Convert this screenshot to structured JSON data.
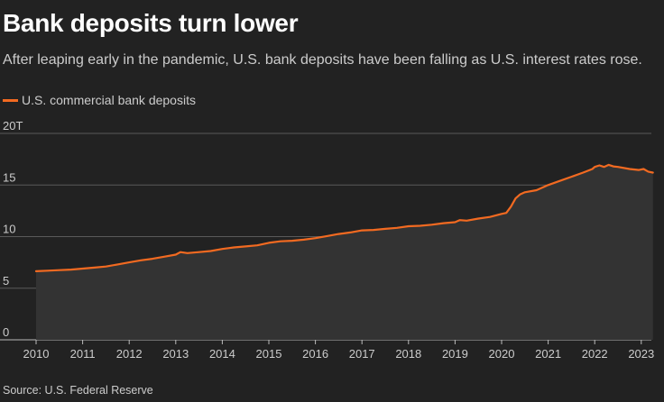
{
  "header": {
    "title": "Bank deposits turn lower",
    "subtitle": "After leaping early in the pandemic, U.S. bank deposits have been falling as U.S. interest rates rose."
  },
  "footer": {
    "source": "Source: U.S. Federal Reserve"
  },
  "colors": {
    "background": "#222222",
    "line": "#f26a21",
    "area": "#333333",
    "grid": "#5a5a5a",
    "text": "#cccccc"
  },
  "chart_data": {
    "type": "area",
    "title": "Bank deposits turn lower",
    "subtitle": "After leaping early in the pandemic, U.S. bank deposits have been falling as U.S. interest rates rose.",
    "xlabel": "",
    "ylabel": "",
    "xlim": [
      2010.0,
      2023.3
    ],
    "ylim": [
      0,
      20
    ],
    "yticks": [
      0,
      5,
      10,
      15,
      20
    ],
    "ytick_labels": [
      "0",
      "5",
      "10",
      "15",
      "20T"
    ],
    "xticks": [
      2010,
      2011,
      2012,
      2013,
      2014,
      2015,
      2016,
      2017,
      2018,
      2019,
      2020,
      2021,
      2022,
      2023
    ],
    "xtick_labels": [
      "2010",
      "2011",
      "2012",
      "2013",
      "2014",
      "2015",
      "2016",
      "2017",
      "2018",
      "2019",
      "2020",
      "2021",
      "2022",
      "2023"
    ],
    "grid": "horizontal",
    "legend_position": "top-left",
    "series": [
      {
        "name": "U.S. commercial bank deposits",
        "color": "#f26a21",
        "points": [
          [
            2010.0,
            6.65
          ],
          [
            2010.25,
            6.7
          ],
          [
            2010.5,
            6.75
          ],
          [
            2010.75,
            6.8
          ],
          [
            2011.0,
            6.9
          ],
          [
            2011.25,
            7.0
          ],
          [
            2011.5,
            7.1
          ],
          [
            2011.75,
            7.3
          ],
          [
            2012.0,
            7.5
          ],
          [
            2012.25,
            7.7
          ],
          [
            2012.5,
            7.85
          ],
          [
            2012.75,
            8.05
          ],
          [
            2013.0,
            8.25
          ],
          [
            2013.1,
            8.5
          ],
          [
            2013.25,
            8.4
          ],
          [
            2013.5,
            8.5
          ],
          [
            2013.75,
            8.6
          ],
          [
            2014.0,
            8.8
          ],
          [
            2014.25,
            8.95
          ],
          [
            2014.5,
            9.05
          ],
          [
            2014.75,
            9.15
          ],
          [
            2015.0,
            9.4
          ],
          [
            2015.25,
            9.55
          ],
          [
            2015.5,
            9.6
          ],
          [
            2015.75,
            9.7
          ],
          [
            2016.0,
            9.85
          ],
          [
            2016.25,
            10.05
          ],
          [
            2016.5,
            10.25
          ],
          [
            2016.75,
            10.4
          ],
          [
            2017.0,
            10.6
          ],
          [
            2017.25,
            10.65
          ],
          [
            2017.5,
            10.75
          ],
          [
            2017.75,
            10.85
          ],
          [
            2018.0,
            11.0
          ],
          [
            2018.25,
            11.05
          ],
          [
            2018.5,
            11.15
          ],
          [
            2018.75,
            11.3
          ],
          [
            2019.0,
            11.4
          ],
          [
            2019.1,
            11.6
          ],
          [
            2019.25,
            11.55
          ],
          [
            2019.5,
            11.75
          ],
          [
            2019.75,
            11.9
          ],
          [
            2020.0,
            12.2
          ],
          [
            2020.1,
            12.3
          ],
          [
            2020.2,
            12.9
          ],
          [
            2020.3,
            13.7
          ],
          [
            2020.4,
            14.1
          ],
          [
            2020.5,
            14.3
          ],
          [
            2020.75,
            14.5
          ],
          [
            2021.0,
            15.0
          ],
          [
            2021.25,
            15.4
          ],
          [
            2021.5,
            15.8
          ],
          [
            2021.75,
            16.2
          ],
          [
            2021.95,
            16.55
          ],
          [
            2022.0,
            16.75
          ],
          [
            2022.1,
            16.9
          ],
          [
            2022.2,
            16.75
          ],
          [
            2022.3,
            16.95
          ],
          [
            2022.4,
            16.8
          ],
          [
            2022.5,
            16.75
          ],
          [
            2022.75,
            16.55
          ],
          [
            2022.95,
            16.45
          ],
          [
            2023.05,
            16.55
          ],
          [
            2023.15,
            16.3
          ],
          [
            2023.25,
            16.2
          ]
        ]
      }
    ]
  }
}
